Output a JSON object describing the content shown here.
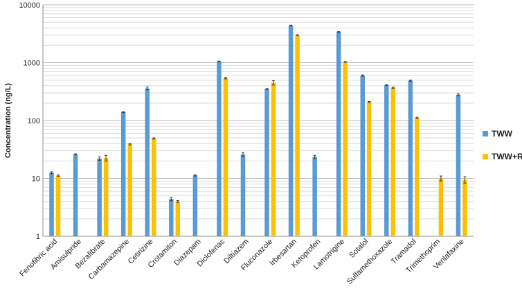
{
  "chart_data": {
    "type": "bar",
    "title": "",
    "xlabel": "",
    "ylabel": "Concentration (ng/L)",
    "yscale": "log",
    "ylim": [
      1,
      10000
    ],
    "yticks": [
      "1",
      "10",
      "100",
      "1000",
      "10000"
    ],
    "grid": "horizontal minor and major gridlines",
    "legend_position": "right",
    "categories": [
      "Fenofibric acid",
      "Amisulpride",
      "Bezafibrate",
      "Carbamazepine",
      "Cetirizine",
      "Crotamiton",
      "Diazepam",
      "Diclofenac",
      "Diltiazem",
      "Fluconazole",
      "Irbesartan",
      "Ketoprofen",
      "Lamotrigine",
      "Sotalol",
      "Sulfamethoxazole",
      "Tramadol",
      "Trimethoprim",
      "Venlafaxine"
    ],
    "series": [
      {
        "name": "TWW",
        "color": "#5B9BD5",
        "values": [
          12.5,
          26,
          22,
          140,
          360,
          4.4,
          11.3,
          1050,
          26,
          350,
          4400,
          23.5,
          3400,
          600,
          410,
          490,
          null,
          280
        ],
        "errors": [
          0.5,
          0.5,
          1.5,
          3,
          20,
          0.3,
          0.3,
          15,
          2,
          8,
          60,
          1.5,
          50,
          15,
          8,
          10,
          null,
          10
        ]
      },
      {
        "name": "TWW+RB",
        "color": "#FFC000",
        "values": [
          11.2,
          null,
          22.5,
          39,
          49,
          4.0,
          null,
          540,
          null,
          450,
          3000,
          null,
          1030,
          210,
          370,
          112,
          10,
          9.5
        ],
        "errors": [
          0.3,
          null,
          2.5,
          1,
          1,
          0.15,
          null,
          15,
          null,
          40,
          40,
          null,
          15,
          4,
          8,
          2,
          1,
          1.2
        ]
      }
    ]
  }
}
